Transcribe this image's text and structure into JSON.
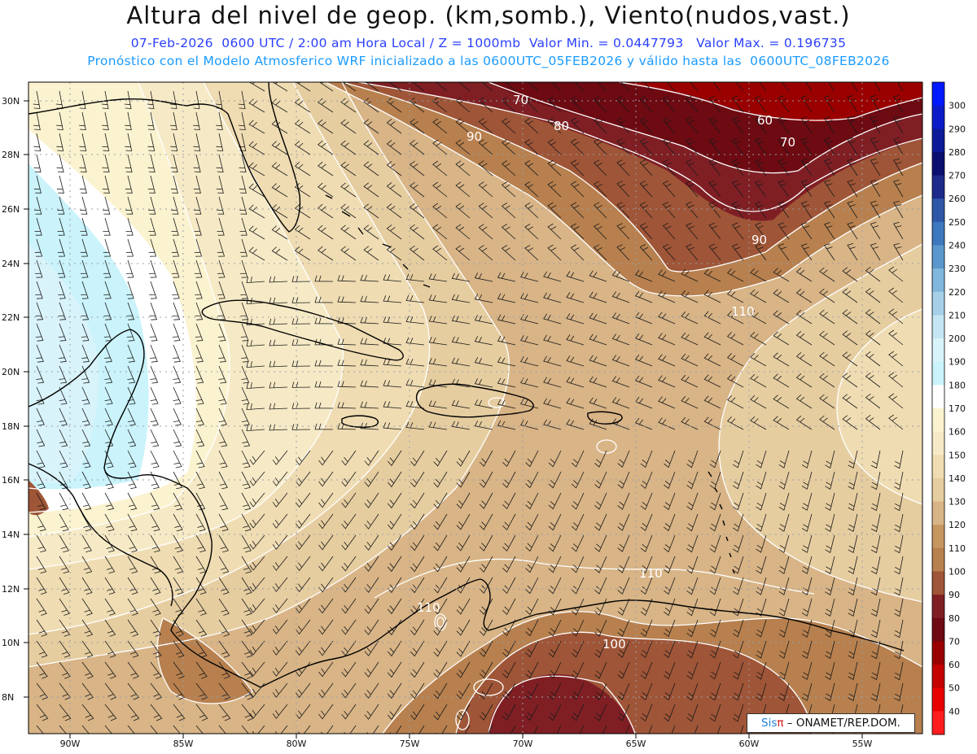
{
  "header": {
    "title": "Altura del nivel de geop. (km,somb.), Viento(nudos,vast.)",
    "subtitle1": "07-Feb-2026  0600 UTC / 2:00 am Hora Local / Z = 1000mb  Valor Min. = 0.0447793   Valor Max. = 0.196735",
    "subtitle2": "Pronóstico con el Modelo Atmosferico WRF inicializado a las 0600UTC_05FEB2026 y válido hasta las  0600UTC_08FEB2026"
  },
  "map": {
    "lat_labels": [
      "30N",
      "28N",
      "26N",
      "24N",
      "22N",
      "20N",
      "18N",
      "16N",
      "14N",
      "12N",
      "10N",
      "8N"
    ],
    "lon_labels": [
      "90W",
      "85W",
      "80W",
      "75W",
      "70W",
      "65W",
      "60W",
      "55W"
    ],
    "contour_labels": [
      "70",
      "80",
      "90",
      "60",
      "70",
      "90",
      "110",
      "110",
      "110",
      "100"
    ],
    "grid": "dotted"
  },
  "colorbar": {
    "levels": [
      "300",
      "290",
      "280",
      "270",
      "260",
      "250",
      "240",
      "230",
      "220",
      "210",
      "200",
      "190",
      "180",
      "170",
      "160",
      "150",
      "140",
      "130",
      "120",
      "110",
      "100",
      "90",
      "80",
      "70",
      "60",
      "50",
      "40"
    ],
    "colors": [
      "#0019ff",
      "#0a1cc8",
      "#0c1a9a",
      "#0b0f70",
      "#1d2a8c",
      "#2f57a8",
      "#3d77bd",
      "#5b97cc",
      "#82b7dd",
      "#a6d0e8",
      "#c4e5f2",
      "#d9f3fa",
      "#caf3fb",
      "#ffffff",
      "#fbf2cf",
      "#f6eac6",
      "#efdcb2",
      "#e6cda0",
      "#d8b486",
      "#c69661",
      "#b7804e",
      "#9f5537",
      "#7f1f24",
      "#6d0a12",
      "#9a0000",
      "#c40000",
      "#e80000",
      "#ff1c1c"
    ]
  },
  "credit": {
    "brand": "Sis",
    "pi": "π",
    "text": "– ONAMET/REP.DOM."
  }
}
